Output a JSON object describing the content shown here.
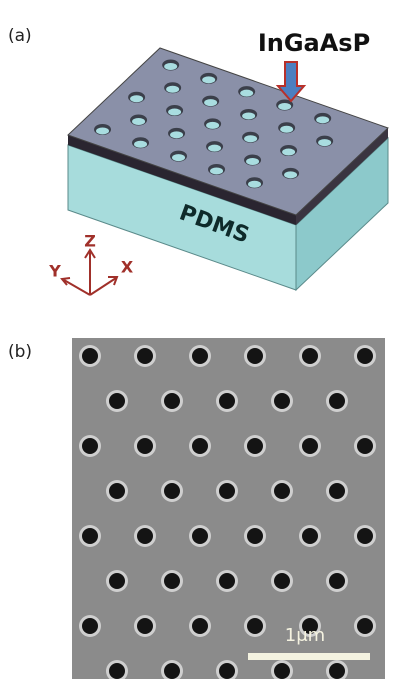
{
  "panel_a": {
    "label": "(a)",
    "layer_top": "InGaAsP",
    "layer_bottom": "PDMS",
    "axis_z": "Z",
    "axis_y": "Y",
    "axis_x": "X"
  },
  "panel_b": {
    "label": "(b)",
    "scale_bar": "1μm"
  }
}
